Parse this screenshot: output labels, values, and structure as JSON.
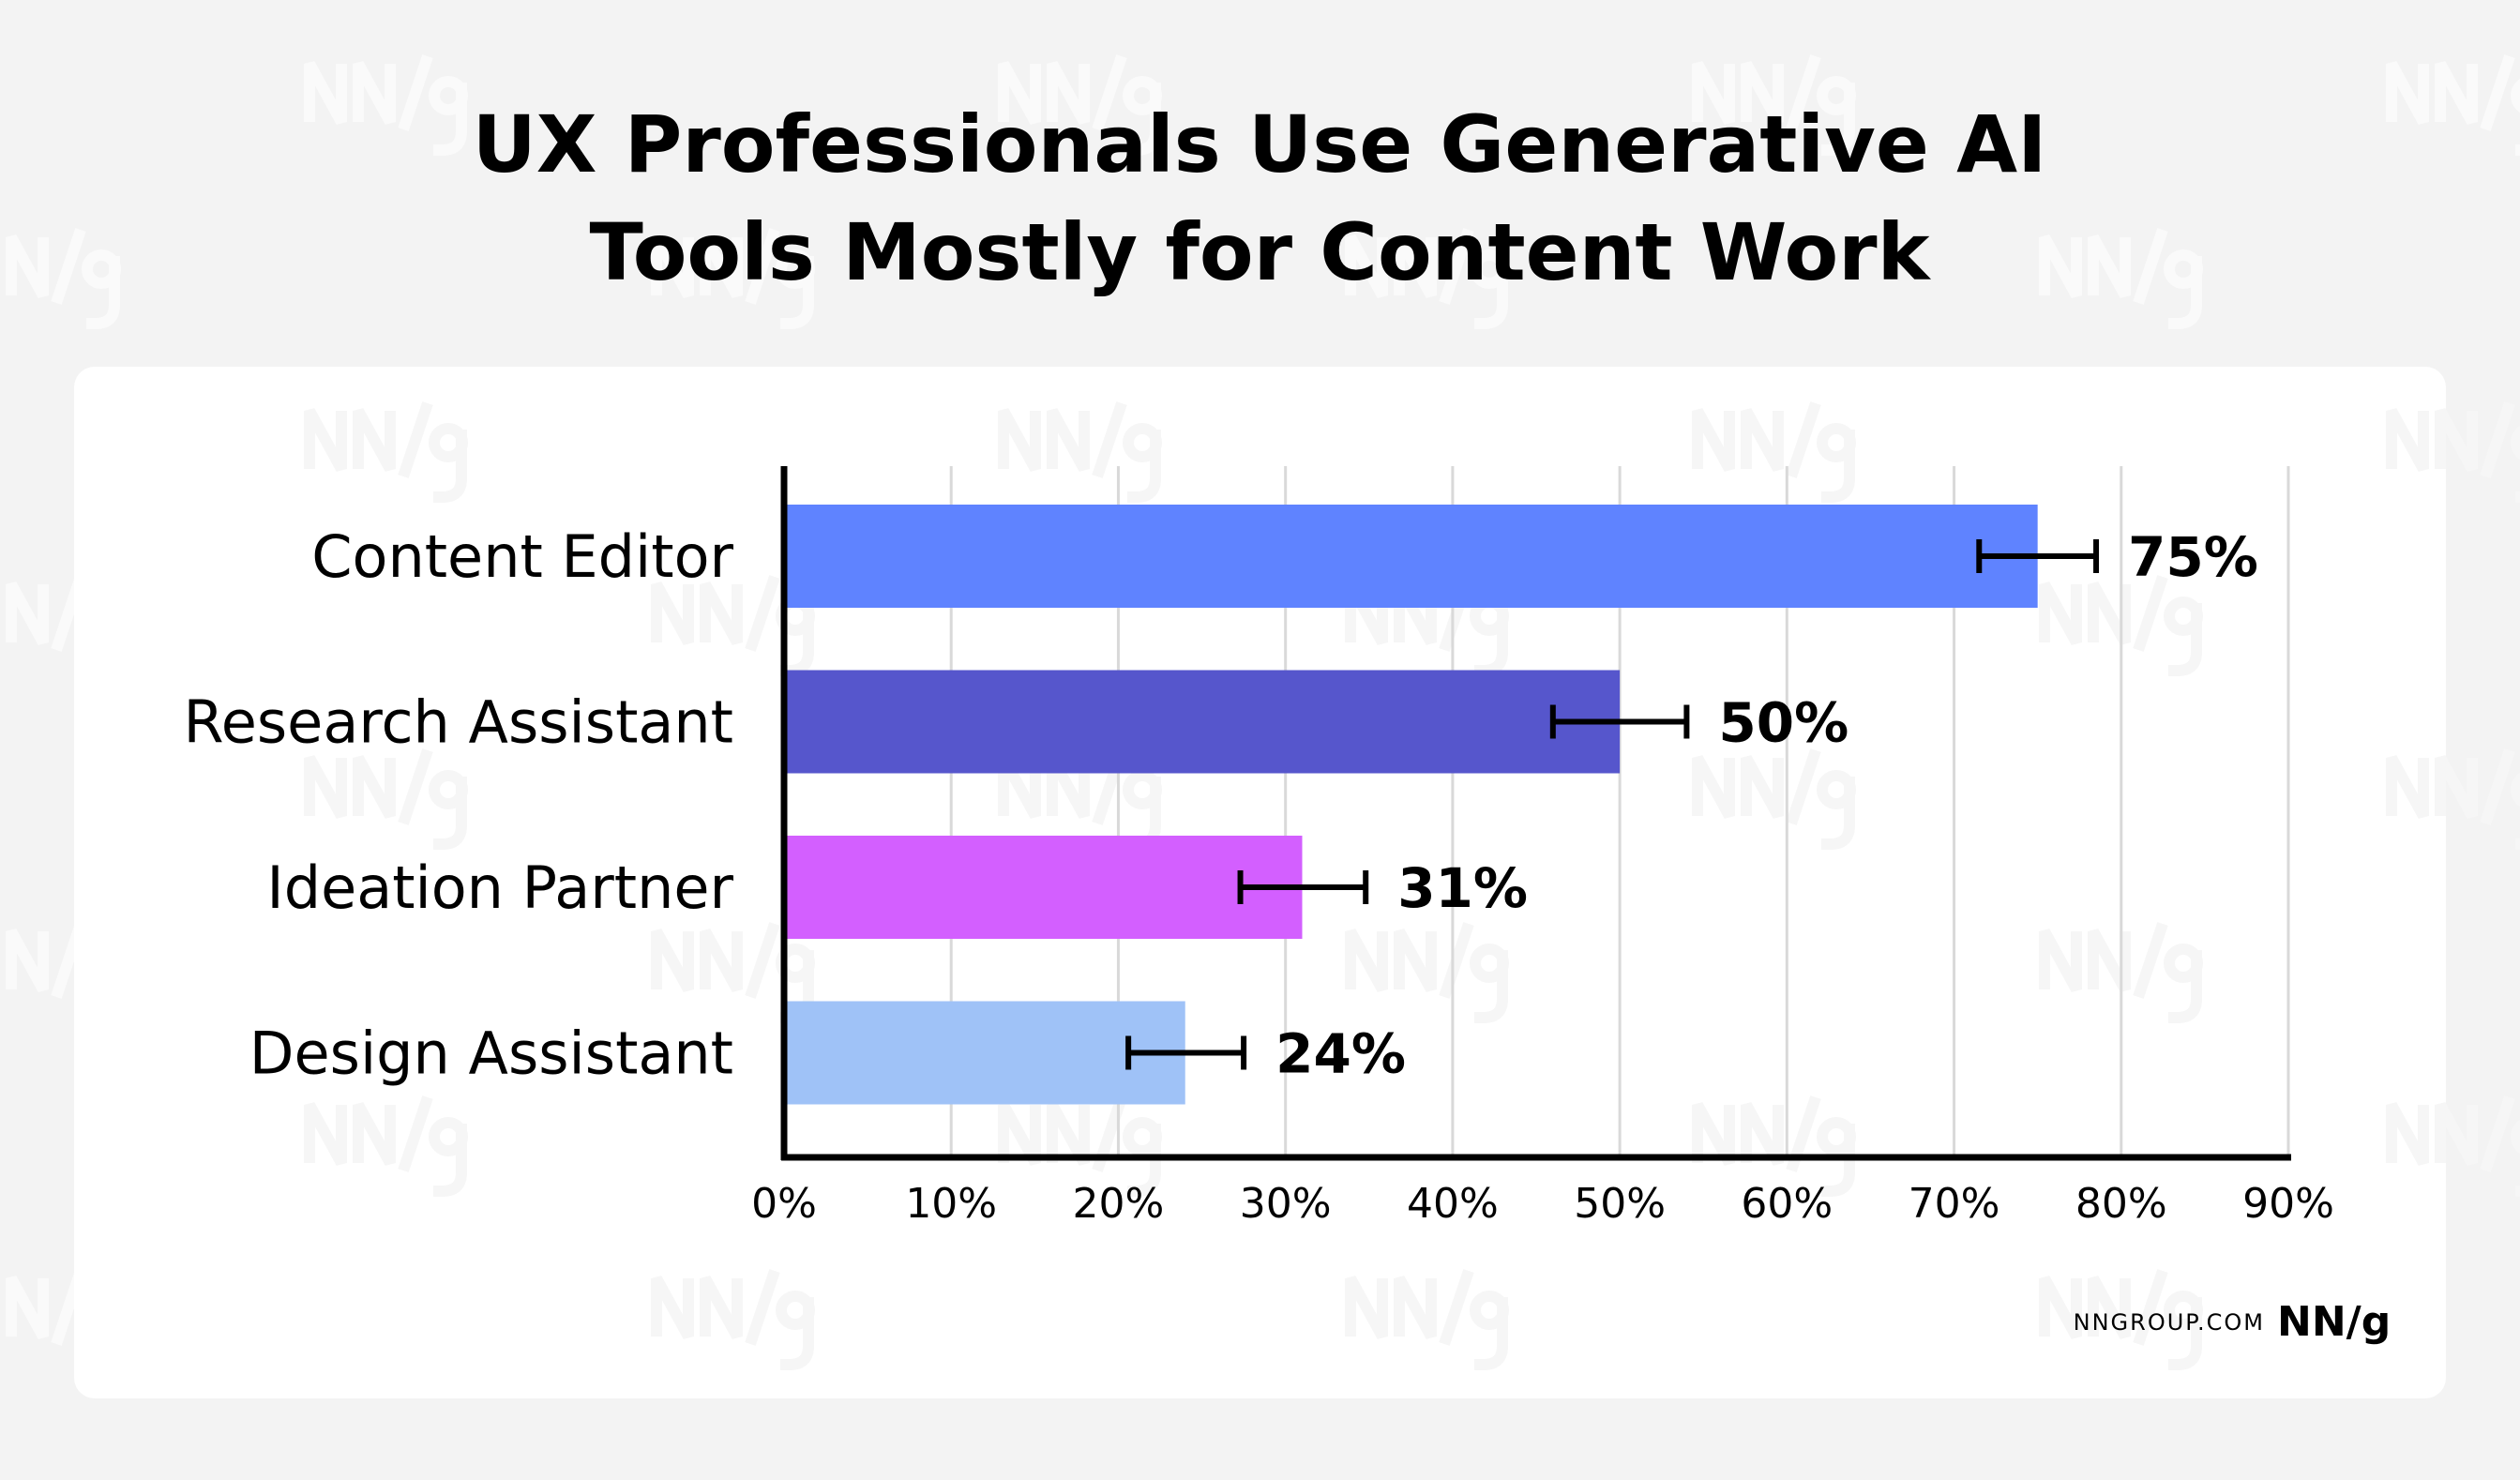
{
  "chart_data": {
    "type": "bar",
    "orientation": "horizontal",
    "title": "UX Professionals Use Generative AI Tools Mostly for Content Work",
    "title_lines": [
      "UX Professionals Use Generative AI",
      "Tools Mostly for Content Work"
    ],
    "categories": [
      "Content Editor",
      "Research Assistant",
      "Ideation Partner",
      "Design Assistant"
    ],
    "values": [
      75,
      50,
      31,
      24
    ],
    "data_labels": [
      "75%",
      "50%",
      "31%",
      "24%"
    ],
    "error_bars": [
      [
        71.5,
        78.5
      ],
      [
        46,
        54
      ],
      [
        27.3,
        34.8
      ],
      [
        20.6,
        27.5
      ]
    ],
    "colors": [
      "#5f83ff",
      "#5656cc",
      "#d35fff",
      "#9fc2f7"
    ],
    "xlim": [
      0,
      90
    ],
    "xticks": [
      0,
      10,
      20,
      30,
      40,
      50,
      60,
      70,
      80,
      90
    ],
    "xtick_labels": [
      "0%",
      "10%",
      "20%",
      "30%",
      "40%",
      "50%",
      "60%",
      "70%",
      "80%",
      "90%"
    ],
    "xlabel": "",
    "ylabel": "",
    "grid": "vertical",
    "legend": "none"
  },
  "footer": {
    "source": "NNGROUP.COM",
    "logo": "NN/g"
  },
  "watermark": "NN/g",
  "colors": {
    "background": "#f3f3f3",
    "card": "#ffffff",
    "grid": "#d9d9d9",
    "axis": "#000000"
  }
}
